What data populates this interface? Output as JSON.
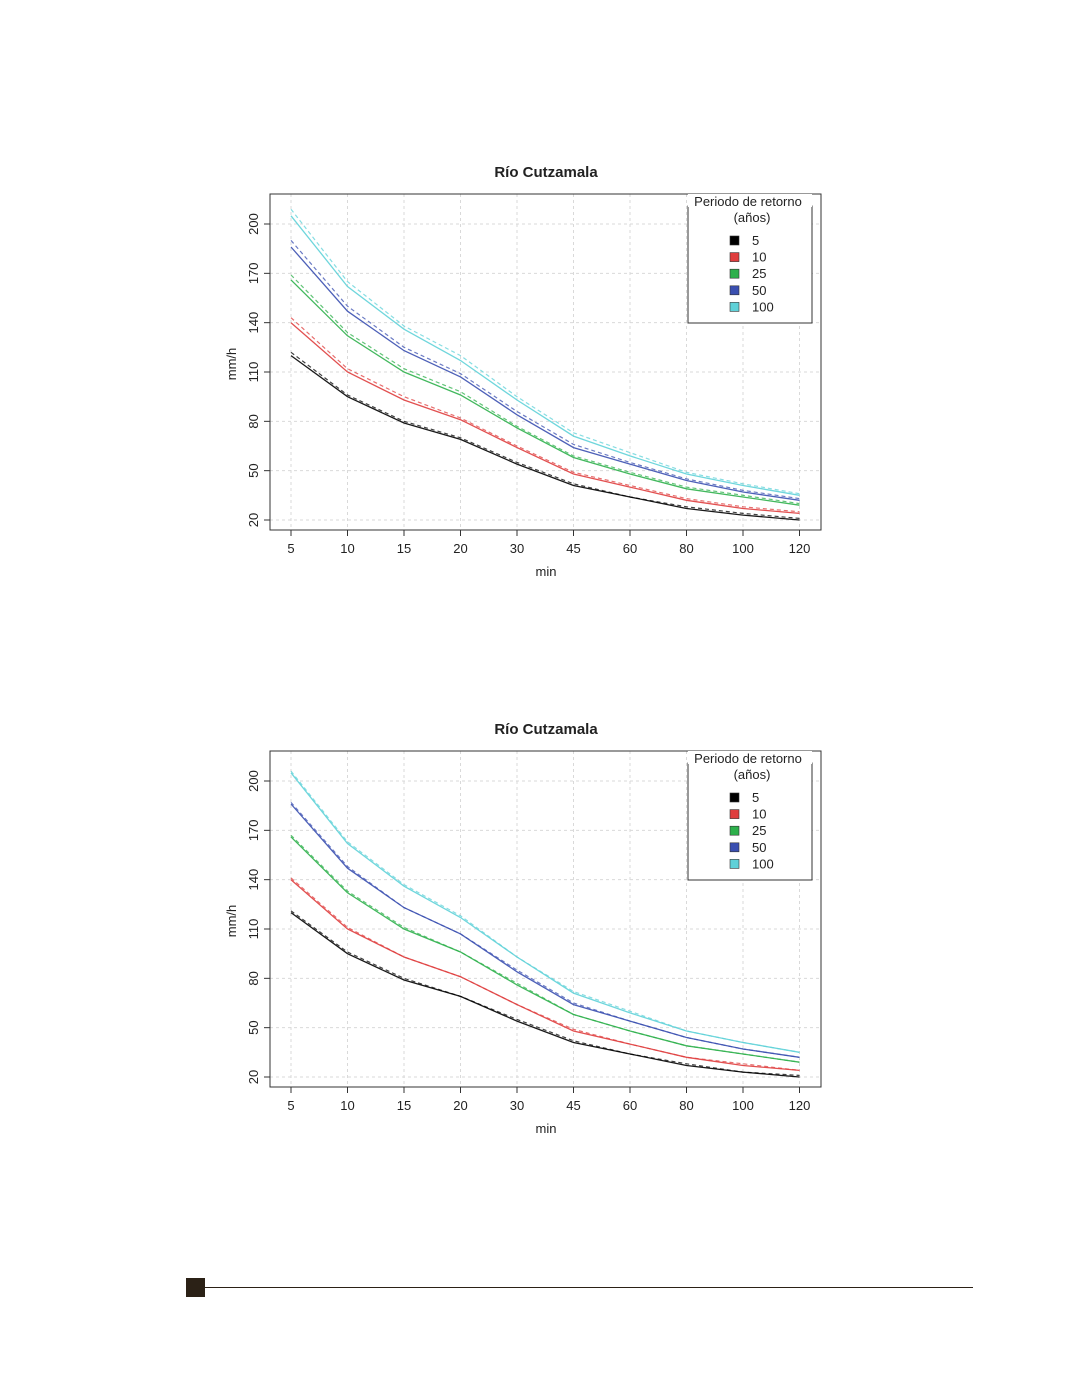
{
  "chart_data": [
    {
      "type": "line",
      "title": "Río Cutzamala",
      "xlabel": "min",
      "ylabel": "mm/h",
      "x": [
        "5",
        "10",
        "15",
        "20",
        "30",
        "45",
        "60",
        "80",
        "100",
        "120"
      ],
      "ylim": [
        20,
        210
      ],
      "yticks": [
        20,
        50,
        80,
        110,
        140,
        170,
        200
      ],
      "grid": true,
      "legend": {
        "title": [
          "Periodo de retorno",
          "(años)"
        ],
        "placement": "top-right"
      },
      "series": [
        {
          "name": "5",
          "color": "#000000",
          "solid": [
            120,
            95,
            79,
            69,
            54,
            41,
            34,
            27,
            23,
            20
          ],
          "dashed": [
            122,
            96,
            80,
            70,
            55,
            42,
            34,
            28,
            24,
            21
          ]
        },
        {
          "name": "10",
          "color": "#df3d3d",
          "solid": [
            140,
            110,
            93,
            81,
            64,
            48,
            40,
            32,
            27,
            24
          ],
          "dashed": [
            143,
            112,
            95,
            82,
            65,
            49,
            41,
            33,
            28,
            25
          ]
        },
        {
          "name": "25",
          "color": "#2db04b",
          "solid": [
            166,
            132,
            110,
            96,
            76,
            58,
            48,
            39,
            34,
            29
          ],
          "dashed": [
            169,
            134,
            112,
            98,
            77,
            59,
            49,
            40,
            35,
            30
          ]
        },
        {
          "name": "50",
          "color": "#3a4fb0",
          "solid": [
            186,
            147,
            123,
            107,
            84,
            64,
            54,
            44,
            37,
            32
          ],
          "dashed": [
            190,
            150,
            125,
            109,
            86,
            66,
            55,
            45,
            38,
            33
          ]
        },
        {
          "name": "100",
          "color": "#5fd1d8",
          "solid": [
            205,
            162,
            136,
            117,
            93,
            71,
            59,
            48,
            41,
            35
          ],
          "dashed": [
            209,
            165,
            138,
            120,
            95,
            73,
            61,
            49,
            42,
            36
          ]
        }
      ]
    },
    {
      "type": "line",
      "title": "Río Cutzamala",
      "xlabel": "min",
      "ylabel": "mm/h",
      "x": [
        "5",
        "10",
        "15",
        "20",
        "30",
        "45",
        "60",
        "80",
        "100",
        "120"
      ],
      "ylim": [
        20,
        210
      ],
      "yticks": [
        20,
        50,
        80,
        110,
        140,
        170,
        200
      ],
      "grid": true,
      "legend": {
        "title": [
          "Periodo de retorno",
          "(años)"
        ],
        "placement": "top-right"
      },
      "series": [
        {
          "name": "5",
          "color": "#000000",
          "solid": [
            120,
            95,
            79,
            69,
            54,
            41,
            34,
            27,
            23,
            20
          ],
          "dashed": [
            121,
            96,
            80,
            69,
            55,
            42,
            34,
            28,
            23,
            21
          ]
        },
        {
          "name": "10",
          "color": "#df3d3d",
          "solid": [
            140,
            110,
            93,
            81,
            64,
            48,
            40,
            32,
            27,
            24
          ],
          "dashed": [
            141,
            111,
            93,
            81,
            64,
            49,
            40,
            32,
            28,
            24
          ]
        },
        {
          "name": "25",
          "color": "#2db04b",
          "solid": [
            166,
            132,
            110,
            96,
            76,
            58,
            48,
            39,
            34,
            29
          ],
          "dashed": [
            167,
            133,
            111,
            96,
            77,
            58,
            48,
            39,
            34,
            29
          ]
        },
        {
          "name": "50",
          "color": "#3a4fb0",
          "solid": [
            186,
            147,
            123,
            107,
            84,
            64,
            54,
            44,
            37,
            32
          ],
          "dashed": [
            187,
            148,
            123,
            107,
            85,
            65,
            54,
            44,
            37,
            32
          ]
        },
        {
          "name": "100",
          "color": "#5fd1d8",
          "solid": [
            205,
            162,
            136,
            117,
            93,
            71,
            59,
            48,
            41,
            35
          ],
          "dashed": [
            206,
            163,
            137,
            118,
            93,
            72,
            60,
            48,
            41,
            35
          ]
        }
      ]
    }
  ]
}
